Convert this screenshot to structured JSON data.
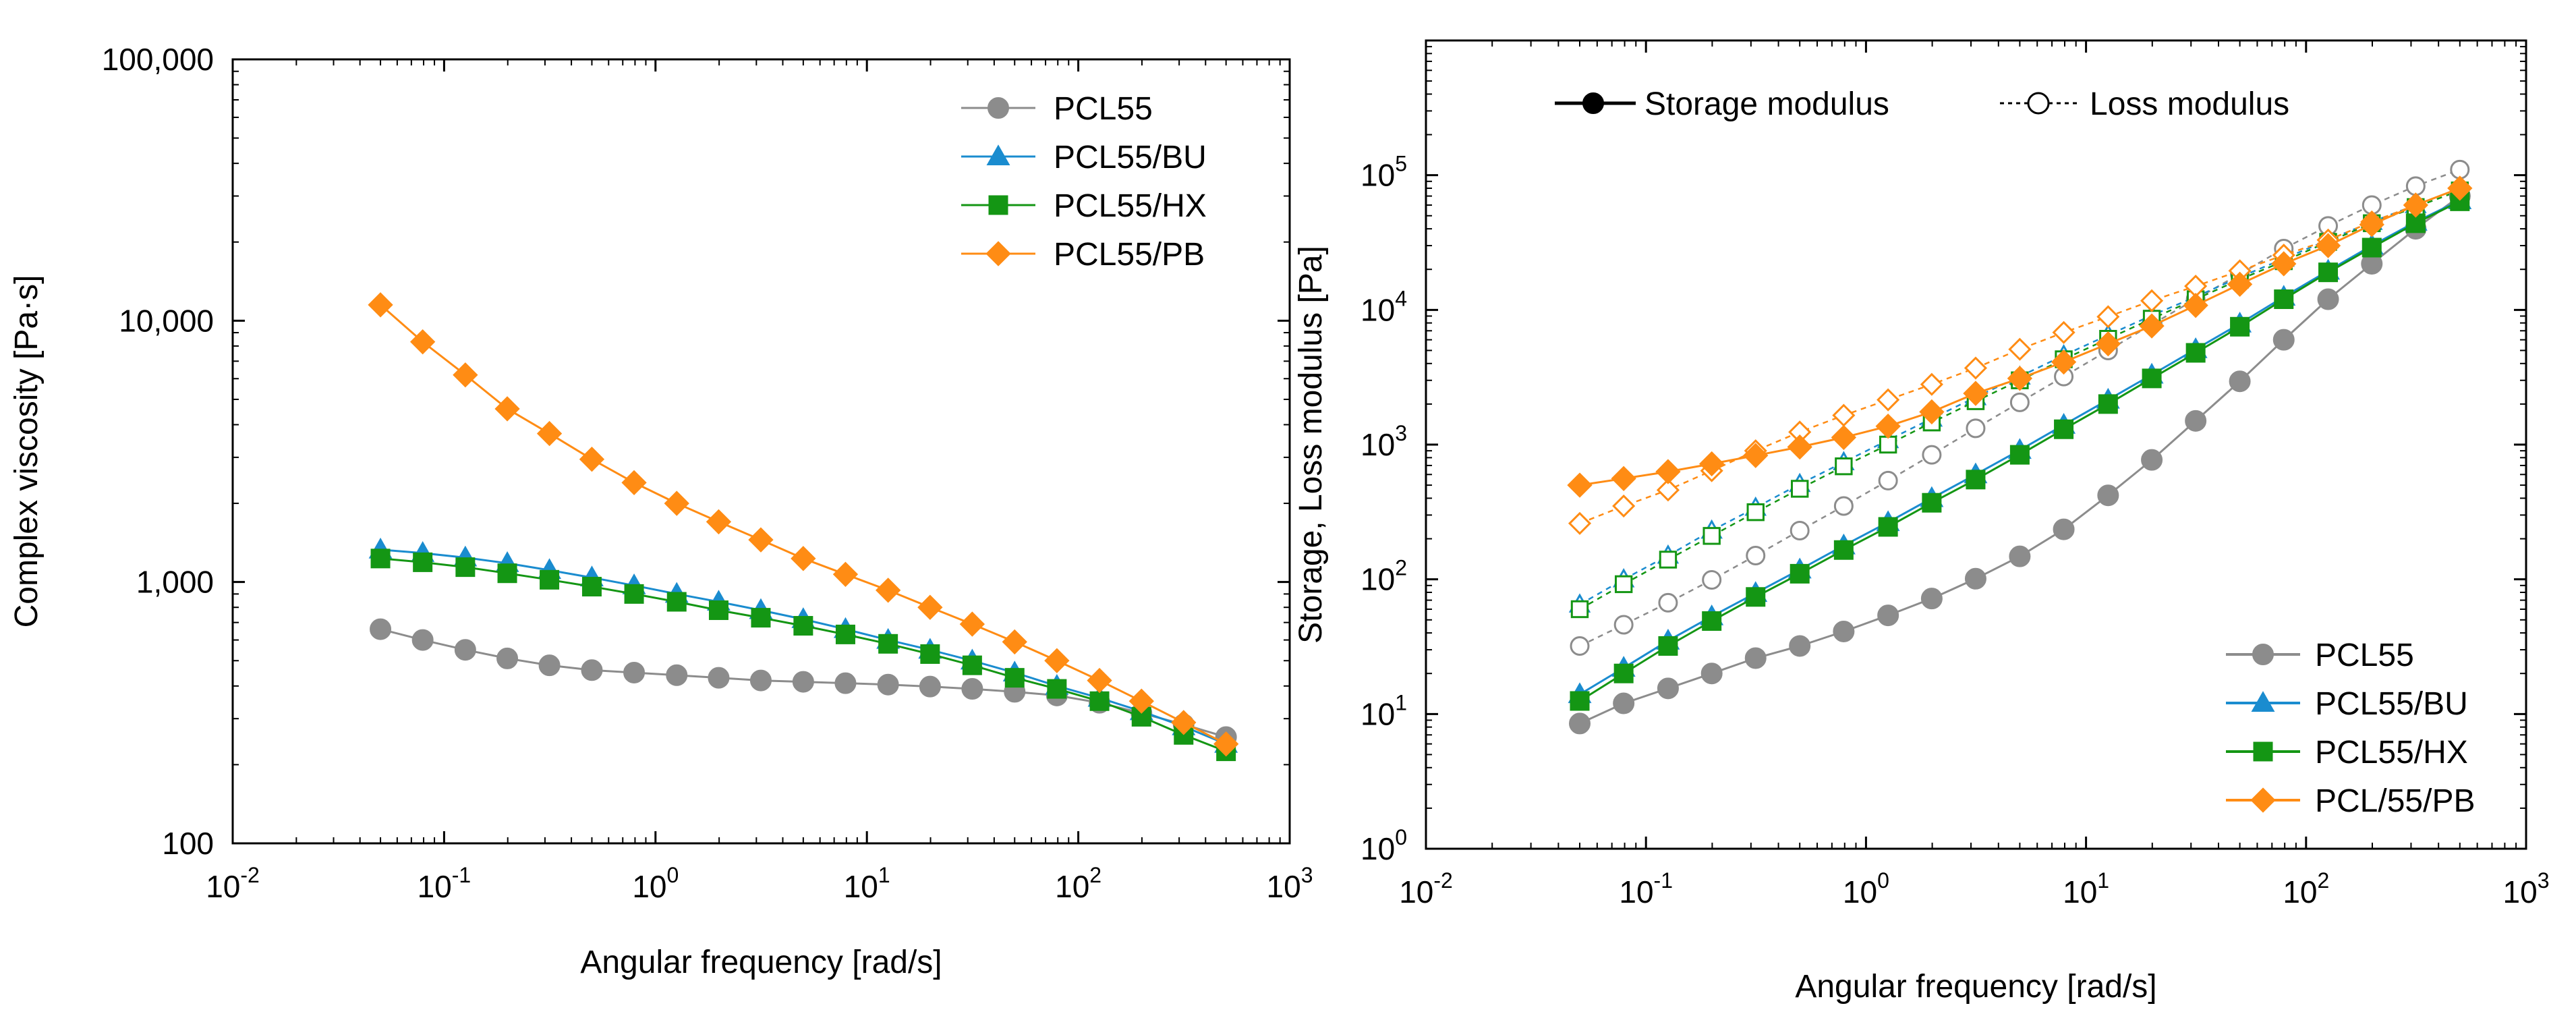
{
  "chart_data": [
    {
      "type": "line",
      "title": "",
      "xlabel": "Angular frequency [rad/s]",
      "ylabel": "Complex viscosity [Pa·s]",
      "xscale": "log",
      "yscale": "log",
      "xlim": [
        0.01,
        1000
      ],
      "ylim": [
        100,
        100000
      ],
      "grid": false,
      "legend_position": "top-right",
      "x_tick_labels": [
        {
          "base": "10",
          "exp": "-2"
        },
        {
          "base": "10",
          "exp": "-1"
        },
        {
          "base": "10",
          "exp": "0"
        },
        {
          "base": "10",
          "exp": "1"
        },
        {
          "base": "10",
          "exp": "2"
        },
        {
          "base": "10",
          "exp": "3"
        }
      ],
      "y_tick_labels": [
        "100",
        "1,000",
        "10,000",
        "100,000"
      ],
      "x": [
        0.05,
        0.0792,
        0.126,
        0.199,
        0.315,
        0.5,
        0.792,
        1.26,
        1.99,
        3.15,
        5,
        7.92,
        12.6,
        19.9,
        31.5,
        50,
        79.2,
        126,
        199,
        315,
        500
      ],
      "series": [
        {
          "name": "PCL55",
          "marker": "circle",
          "color": "#8c8c8c",
          "values": [
            660,
            600,
            550,
            510,
            480,
            460,
            450,
            440,
            430,
            420,
            415,
            410,
            405,
            398,
            390,
            380,
            368,
            345,
            315,
            285,
            255
          ]
        },
        {
          "name": "PCL55/BU",
          "marker": "triangle",
          "color": "#1a8ccf",
          "values": [
            1330,
            1290,
            1240,
            1180,
            1110,
            1040,
            970,
            900,
            840,
            780,
            720,
            660,
            600,
            550,
            500,
            450,
            400,
            360,
            320,
            280,
            240
          ]
        },
        {
          "name": "PCL55/HX",
          "marker": "square",
          "color": "#149614",
          "values": [
            1230,
            1190,
            1140,
            1080,
            1020,
            960,
            900,
            840,
            780,
            730,
            680,
            630,
            580,
            530,
            480,
            430,
            390,
            350,
            305,
            260,
            225
          ]
        },
        {
          "name": "PCL55/PB",
          "marker": "diamond",
          "color": "#ff8c14",
          "values": [
            11500,
            8300,
            6200,
            4600,
            3700,
            2950,
            2400,
            2000,
            1700,
            1450,
            1230,
            1070,
            930,
            800,
            690,
            590,
            500,
            420,
            350,
            290,
            240
          ]
        }
      ]
    },
    {
      "type": "line",
      "title": "",
      "xlabel": "Angular frequency [rad/s]",
      "ylabel": "Storage, Loss modulus [Pa]",
      "xscale": "log",
      "yscale": "log",
      "xlim": [
        0.01,
        1000
      ],
      "ylim": [
        1,
        1000000
      ],
      "grid": false,
      "legend_position": "bottom-right",
      "style_legend": {
        "storage": "Storage modulus",
        "loss": "Loss modulus"
      },
      "x_tick_labels": [
        {
          "base": "10",
          "exp": "-2"
        },
        {
          "base": "10",
          "exp": "-1"
        },
        {
          "base": "10",
          "exp": "0"
        },
        {
          "base": "10",
          "exp": "1"
        },
        {
          "base": "10",
          "exp": "2"
        },
        {
          "base": "10",
          "exp": "3"
        }
      ],
      "y_tick_labels": [
        {
          "base": "10",
          "exp": "0"
        },
        {
          "base": "10",
          "exp": "1"
        },
        {
          "base": "10",
          "exp": "2"
        },
        {
          "base": "10",
          "exp": "3"
        },
        {
          "base": "10",
          "exp": "4"
        },
        {
          "base": "10",
          "exp": "5"
        }
      ],
      "x": [
        0.05,
        0.0792,
        0.126,
        0.199,
        0.315,
        0.5,
        0.792,
        1.26,
        1.99,
        3.15,
        5,
        7.92,
        12.6,
        19.9,
        31.5,
        50,
        79.2,
        126,
        199,
        315,
        500
      ],
      "series": [
        {
          "name": "PCL55",
          "modulus": "storage",
          "marker": "circle",
          "color": "#8c8c8c",
          "values": [
            8.5,
            12,
            15.5,
            20,
            26,
            32,
            41,
            54,
            72,
            101,
            148,
            235,
            420,
            770,
            1500,
            2950,
            6000,
            12000,
            22000,
            40000,
            70000
          ]
        },
        {
          "name": "PCL55/BU",
          "modulus": "storage",
          "marker": "triangle",
          "color": "#1a8ccf",
          "values": [
            14,
            22,
            35,
            53,
            79,
            118,
            178,
            265,
            400,
            600,
            910,
            1400,
            2150,
            3300,
            5100,
            7900,
            12500,
            19500,
            30000,
            45000,
            65000
          ]
        },
        {
          "name": "PCL55/HX",
          "modulus": "storage",
          "marker": "square",
          "color": "#149614",
          "values": [
            12.5,
            20,
            32,
            49,
            74,
            110,
            165,
            245,
            370,
            550,
            840,
            1300,
            2000,
            3100,
            4800,
            7500,
            12000,
            19000,
            29000,
            44000,
            64000
          ]
        },
        {
          "name": "PCL/55/PB",
          "modulus": "storage",
          "marker": "diamond",
          "color": "#ff8c14",
          "values": [
            500,
            560,
            630,
            720,
            830,
            960,
            1130,
            1370,
            1750,
            2400,
            3100,
            4100,
            5600,
            7600,
            10800,
            15500,
            22000,
            30000,
            43000,
            60000,
            80000
          ]
        },
        {
          "name": "PCL55",
          "modulus": "loss",
          "marker": "circle",
          "color": "#8c8c8c",
          "values": [
            32,
            46,
            67,
            99,
            150,
            230,
            350,
            540,
            840,
            1320,
            2060,
            3200,
            5000,
            7800,
            12000,
            18500,
            28500,
            42000,
            60000,
            83000,
            110000
          ]
        },
        {
          "name": "PCL55/BU",
          "modulus": "loss",
          "marker": "triangle",
          "color": "#1a8ccf",
          "values": [
            65,
            100,
            150,
            230,
            340,
            510,
            740,
            1080,
            1560,
            2250,
            3200,
            4600,
            6500,
            9100,
            12500,
            17500,
            24000,
            33000,
            45000,
            60000,
            80000
          ]
        },
        {
          "name": "PCL55/HX",
          "modulus": "loss",
          "marker": "square",
          "color": "#149614",
          "values": [
            60,
            92,
            140,
            210,
            315,
            470,
            690,
            1000,
            1460,
            2100,
            3000,
            4300,
            6100,
            8600,
            12000,
            16800,
            23000,
            32000,
            44000,
            58000,
            77000
          ]
        },
        {
          "name": "PCL/55/PB",
          "modulus": "loss",
          "marker": "diamond",
          "color": "#ff8c14",
          "values": [
            260,
            350,
            460,
            640,
            900,
            1240,
            1650,
            2150,
            2800,
            3700,
            5100,
            6800,
            8900,
            11700,
            15000,
            19500,
            25500,
            33000,
            45000,
            60000,
            80000
          ]
        }
      ]
    }
  ]
}
